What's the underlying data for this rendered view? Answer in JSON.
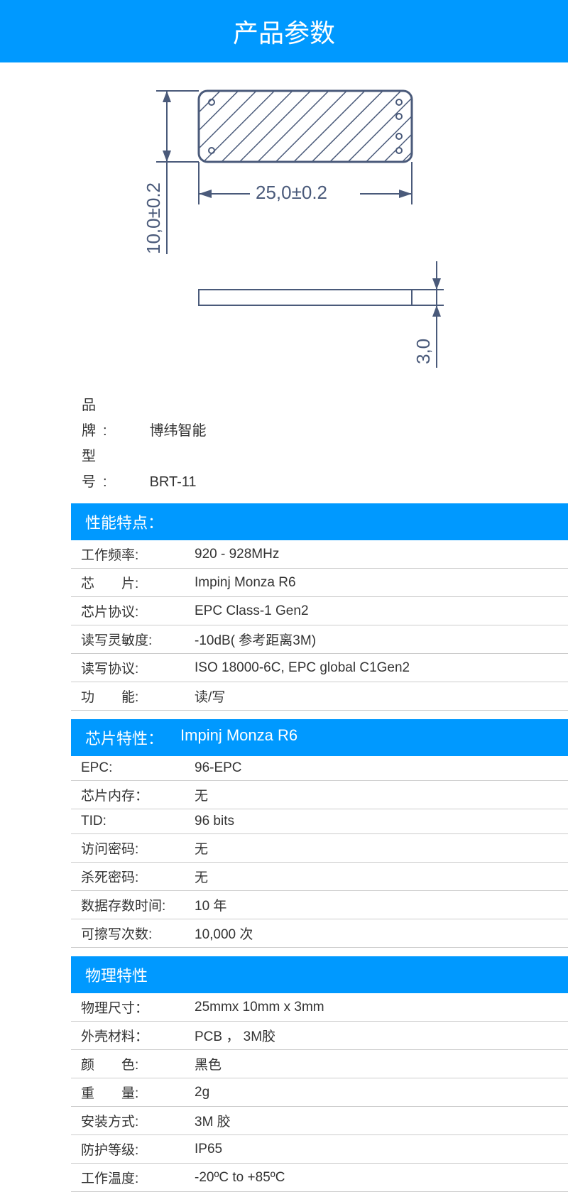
{
  "colors": {
    "accent": "#0099ff",
    "text": "#333333",
    "white": "#ffffff",
    "border": "#cccccc",
    "diagram_stroke": "#4a5a7a"
  },
  "page_title": "产品参数",
  "diagram": {
    "width_label": "25,0±0.2",
    "height_label": "10,0±0.2",
    "thickness_label": "3,0"
  },
  "basic": {
    "brand_label": "品　牌:",
    "brand_value": "博纬智能",
    "model_label": "型　号:",
    "model_value": "BRT-11"
  },
  "sections": [
    {
      "title": "性能特点：",
      "subtitle": "",
      "rows": [
        {
          "k": "工作频率:",
          "v": "920 - 928MHz"
        },
        {
          "k": "芯　　片:",
          "v": "Impinj Monza R6"
        },
        {
          "k": "芯片协议:",
          "v": "EPC Class-1 Gen2"
        },
        {
          "k": "读写灵敏度:",
          "v": "-10dB( 参考距离3M)"
        },
        {
          "k": "读写协议:",
          "v": "ISO 18000-6C, EPC global C1Gen2"
        },
        {
          "k": "功　　能:",
          "v": "读/写"
        }
      ]
    },
    {
      "title": "芯片特性：",
      "subtitle": "Impinj Monza R6",
      "rows": [
        {
          "k": "EPC:",
          "v": "96-EPC"
        },
        {
          "k": "芯片内存：",
          "v": "无"
        },
        {
          "k": "TID:",
          "v": "96 bits"
        },
        {
          "k": "访问密码:",
          "v": "无"
        },
        {
          "k": "杀死密码:",
          "v": "无"
        },
        {
          "k": "数据存数时间:",
          "v": "10 年"
        },
        {
          "k": "可擦写次数:",
          "v": "10,000 次"
        }
      ]
    },
    {
      "title": "物理特性",
      "subtitle": "",
      "rows": [
        {
          "k": "物理尺寸：",
          "v": "25mmx 10mm x 3mm"
        },
        {
          "k": "外壳材料：",
          "v": "PCB ， 3M胶"
        },
        {
          "k": "颜　　色:",
          "v": "黑色"
        },
        {
          "k": "重　　量:",
          "v": "2g"
        },
        {
          "k": "安装方式:",
          "v": "3M 胶"
        },
        {
          "k": "防护等级:",
          "v": "IP65"
        },
        {
          "k": "工作温度:",
          "v": "-20ºC to +85ºC"
        }
      ]
    }
  ]
}
